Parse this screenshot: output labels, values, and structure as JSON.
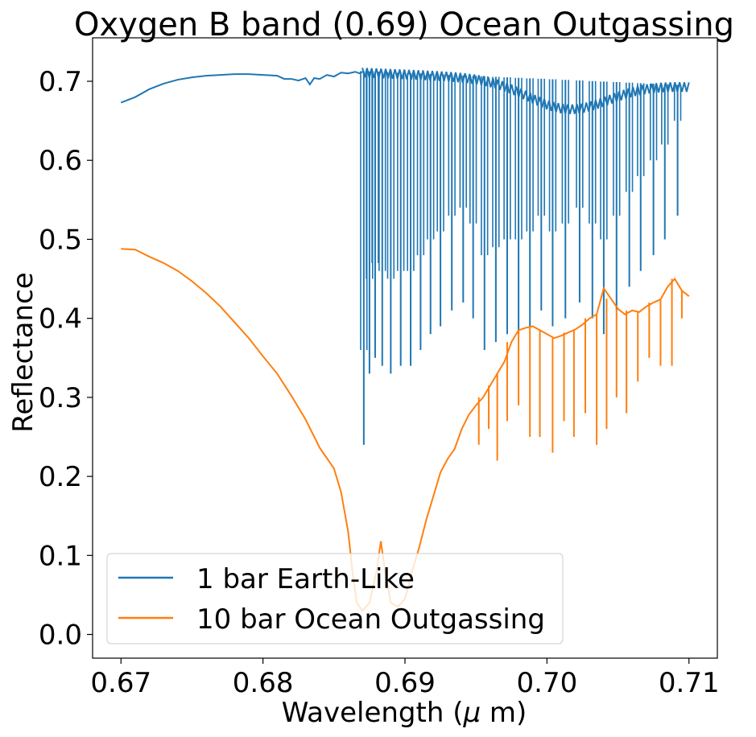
{
  "chart_data": {
    "type": "line",
    "title": "Oxygen B band (0.69) Ocean Outgassing",
    "xlabel": "Wavelength ($\\mu$ m)",
    "xlabel_parts": {
      "pre": "Wavelength (",
      "mu": "μ",
      "post": " m)"
    },
    "ylabel": "Reflectance",
    "xlim": [
      0.668,
      0.712
    ],
    "ylim": [
      -0.03,
      0.755
    ],
    "xticks": [
      0.67,
      0.68,
      0.69,
      0.7,
      0.71
    ],
    "xtick_labels": [
      "0.67",
      "0.68",
      "0.69",
      "0.70",
      "0.71"
    ],
    "yticks": [
      0.0,
      0.1,
      0.2,
      0.3,
      0.4,
      0.5,
      0.6,
      0.7
    ],
    "ytick_labels": [
      "0.0",
      "0.1",
      "0.2",
      "0.3",
      "0.4",
      "0.5",
      "0.6",
      "0.7"
    ],
    "grid": false,
    "legend_position": "lower-left",
    "series": [
      {
        "name": "1 bar Earth-Like",
        "color": "#1f77b4",
        "points": [
          [
            0.67,
            0.673
          ],
          [
            0.671,
            0.68
          ],
          [
            0.672,
            0.69
          ],
          [
            0.673,
            0.697
          ],
          [
            0.674,
            0.702
          ],
          [
            0.675,
            0.705
          ],
          [
            0.676,
            0.707
          ],
          [
            0.677,
            0.708
          ],
          [
            0.678,
            0.709
          ],
          [
            0.679,
            0.709
          ],
          [
            0.68,
            0.708
          ],
          [
            0.681,
            0.707
          ],
          [
            0.6815,
            0.703
          ],
          [
            0.682,
            0.703
          ],
          [
            0.6825,
            0.701
          ],
          [
            0.683,
            0.704
          ],
          [
            0.6833,
            0.696
          ],
          [
            0.6836,
            0.704
          ],
          [
            0.684,
            0.703
          ],
          [
            0.6845,
            0.708
          ],
          [
            0.685,
            0.706
          ],
          [
            0.6855,
            0.711
          ],
          [
            0.686,
            0.71
          ],
          [
            0.6865,
            0.712
          ],
          [
            0.6868,
            0.71
          ],
          [
            0.687,
            0.712
          ]
        ],
        "band": {
          "x_start": 0.687,
          "x_end": 0.71,
          "upper_start": 0.713,
          "upper_end": 0.695
        },
        "absorption_lines": [
          [
            0.6871,
            0.24
          ],
          [
            0.6875,
            0.33
          ],
          [
            0.6879,
            0.35
          ],
          [
            0.6884,
            0.34
          ],
          [
            0.689,
            0.33
          ],
          [
            0.6897,
            0.34
          ],
          [
            0.6904,
            0.34
          ],
          [
            0.6911,
            0.36
          ],
          [
            0.6918,
            0.38
          ],
          [
            0.6925,
            0.39
          ],
          [
            0.6933,
            0.41
          ],
          [
            0.6941,
            0.42
          ],
          [
            0.6948,
            0.4
          ],
          [
            0.6956,
            0.36
          ],
          [
            0.6964,
            0.37
          ],
          [
            0.6972,
            0.38
          ],
          [
            0.698,
            0.38
          ],
          [
            0.6988,
            0.39
          ],
          [
            0.6996,
            0.41
          ],
          [
            0.7004,
            0.39
          ],
          [
            0.7013,
            0.4
          ],
          [
            0.7023,
            0.42
          ],
          [
            0.7032,
            0.4
          ],
          [
            0.704,
            0.38
          ],
          [
            0.7049,
            0.41
          ],
          [
            0.7058,
            0.44
          ],
          [
            0.7066,
            0.46
          ],
          [
            0.7075,
            0.48
          ],
          [
            0.7083,
            0.5
          ],
          [
            0.7092,
            0.53
          ]
        ]
      },
      {
        "name": "10 bar Ocean Outgassing",
        "color": "#ff7f0e",
        "points": [
          [
            0.67,
            0.488
          ],
          [
            0.671,
            0.487
          ],
          [
            0.672,
            0.478
          ],
          [
            0.673,
            0.47
          ],
          [
            0.674,
            0.46
          ],
          [
            0.675,
            0.447
          ],
          [
            0.676,
            0.432
          ],
          [
            0.677,
            0.415
          ],
          [
            0.678,
            0.395
          ],
          [
            0.679,
            0.375
          ],
          [
            0.68,
            0.352
          ],
          [
            0.681,
            0.33
          ],
          [
            0.682,
            0.302
          ],
          [
            0.683,
            0.272
          ],
          [
            0.684,
            0.236
          ],
          [
            0.685,
            0.21
          ],
          [
            0.6855,
            0.18
          ],
          [
            0.686,
            0.13
          ],
          [
            0.6863,
            0.08
          ],
          [
            0.6866,
            0.04
          ],
          [
            0.687,
            0.03
          ],
          [
            0.6875,
            0.04
          ],
          [
            0.688,
            0.08
          ],
          [
            0.6883,
            0.118
          ],
          [
            0.6886,
            0.08
          ],
          [
            0.689,
            0.04
          ],
          [
            0.6895,
            0.035
          ],
          [
            0.69,
            0.045
          ],
          [
            0.6905,
            0.08
          ],
          [
            0.691,
            0.11
          ],
          [
            0.6915,
            0.145
          ],
          [
            0.692,
            0.175
          ],
          [
            0.6925,
            0.205
          ],
          [
            0.693,
            0.222
          ],
          [
            0.6935,
            0.235
          ],
          [
            0.694,
            0.26
          ],
          [
            0.6945,
            0.278
          ],
          [
            0.695,
            0.29
          ],
          [
            0.6955,
            0.3
          ],
          [
            0.696,
            0.315
          ],
          [
            0.6965,
            0.33
          ],
          [
            0.697,
            0.345
          ],
          [
            0.6975,
            0.37
          ],
          [
            0.698,
            0.385
          ],
          [
            0.6985,
            0.388
          ],
          [
            0.699,
            0.39
          ],
          [
            0.6995,
            0.385
          ],
          [
            0.7,
            0.38
          ],
          [
            0.7005,
            0.375
          ],
          [
            0.701,
            0.378
          ],
          [
            0.7015,
            0.382
          ],
          [
            0.702,
            0.386
          ],
          [
            0.7025,
            0.392
          ],
          [
            0.703,
            0.4
          ],
          [
            0.7035,
            0.405
          ],
          [
            0.704,
            0.438
          ],
          [
            0.7045,
            0.425
          ],
          [
            0.705,
            0.412
          ],
          [
            0.7055,
            0.405
          ],
          [
            0.706,
            0.41
          ],
          [
            0.7065,
            0.408
          ],
          [
            0.707,
            0.415
          ],
          [
            0.7075,
            0.42
          ],
          [
            0.708,
            0.424
          ],
          [
            0.7085,
            0.44
          ],
          [
            0.709,
            0.45
          ],
          [
            0.7095,
            0.435
          ],
          [
            0.71,
            0.428
          ]
        ],
        "absorption_lines": [
          [
            0.6952,
            0.24
          ],
          [
            0.6959,
            0.26
          ],
          [
            0.6965,
            0.22
          ],
          [
            0.6972,
            0.27
          ],
          [
            0.698,
            0.29
          ],
          [
            0.6988,
            0.25
          ],
          [
            0.6995,
            0.25
          ],
          [
            0.7004,
            0.23
          ],
          [
            0.7012,
            0.27
          ],
          [
            0.7019,
            0.25
          ],
          [
            0.7027,
            0.28
          ],
          [
            0.7035,
            0.24
          ],
          [
            0.7042,
            0.26
          ],
          [
            0.7049,
            0.3
          ],
          [
            0.7056,
            0.28
          ],
          [
            0.7064,
            0.32
          ],
          [
            0.7072,
            0.35
          ],
          [
            0.708,
            0.34
          ],
          [
            0.7088,
            0.34
          ],
          [
            0.7095,
            0.4
          ]
        ]
      }
    ]
  }
}
